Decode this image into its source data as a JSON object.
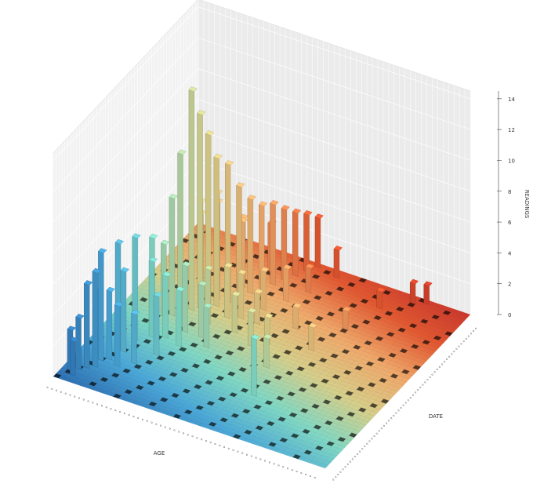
{
  "chart_data": {
    "type": "bar3d",
    "title": "",
    "xlabel": "AGE",
    "ylabel": "DATE",
    "zlabel": "READINGS",
    "zlim": [
      0,
      14.5
    ],
    "z_ticks": [
      0,
      2,
      4,
      6,
      8,
      10,
      12,
      14
    ],
    "grid": true,
    "colormap": [
      "#2c6fb3",
      "#4aa8d8",
      "#7fd8c4",
      "#d6cf8a",
      "#f0a96a",
      "#e2572f",
      "#c8342a"
    ],
    "x_tick_count": 60,
    "y_tick_count": 60,
    "bars": [
      {
        "x": 10,
        "y": 28,
        "z": 14.2
      },
      {
        "x": 11,
        "y": 29,
        "z": 12.6
      },
      {
        "x": 12,
        "y": 30,
        "z": 11.2
      },
      {
        "x": 9,
        "y": 26,
        "z": 10.4
      },
      {
        "x": 13,
        "y": 31,
        "z": 9.6
      },
      {
        "x": 14,
        "y": 33,
        "z": 8.9
      },
      {
        "x": 8,
        "y": 25,
        "z": 7.6
      },
      {
        "x": 15,
        "y": 35,
        "z": 7.2
      },
      {
        "x": 16,
        "y": 37,
        "z": 6.1
      },
      {
        "x": 12,
        "y": 33,
        "z": 6.8
      },
      {
        "x": 17,
        "y": 39,
        "z": 5.4
      },
      {
        "x": 18,
        "y": 41,
        "z": 5.2
      },
      {
        "x": 19,
        "y": 43,
        "z": 4.6
      },
      {
        "x": 20,
        "y": 45,
        "z": 4.1
      },
      {
        "x": 21,
        "y": 47,
        "z": 3.7
      },
      {
        "x": 22,
        "y": 49,
        "z": 3.2
      },
      {
        "x": 14,
        "y": 38,
        "z": 4.2
      },
      {
        "x": 11,
        "y": 35,
        "z": 5.7
      },
      {
        "x": 10,
        "y": 31,
        "z": 6.4
      },
      {
        "x": 9,
        "y": 33,
        "z": 5.1
      },
      {
        "x": 7,
        "y": 20,
        "z": 5.9
      },
      {
        "x": 6,
        "y": 16,
        "z": 6.6
      },
      {
        "x": 5,
        "y": 12,
        "z": 6.9
      },
      {
        "x": 4,
        "y": 8,
        "z": 7.0
      },
      {
        "x": 4,
        "y": 6,
        "z": 6.1
      },
      {
        "x": 3,
        "y": 5,
        "z": 5.4
      },
      {
        "x": 6,
        "y": 12,
        "z": 5.2
      },
      {
        "x": 8,
        "y": 18,
        "z": 4.9
      },
      {
        "x": 3,
        "y": 9,
        "z": 4.1
      },
      {
        "x": 5,
        "y": 9,
        "z": 4.4
      },
      {
        "x": 2,
        "y": 4,
        "z": 3.3
      },
      {
        "x": 1,
        "y": 3,
        "z": 2.6
      },
      {
        "x": 2,
        "y": 2,
        "z": 2.2
      },
      {
        "x": 7,
        "y": 24,
        "z": 4.7
      },
      {
        "x": 13,
        "y": 40,
        "z": 3.9
      },
      {
        "x": 16,
        "y": 44,
        "z": 3.1
      },
      {
        "x": 26,
        "y": 48,
        "z": 1.8
      },
      {
        "x": 18,
        "y": 30,
        "z": 2.9
      },
      {
        "x": 20,
        "y": 34,
        "z": 2.5
      },
      {
        "x": 22,
        "y": 38,
        "z": 2.1
      },
      {
        "x": 24,
        "y": 42,
        "z": 1.6
      },
      {
        "x": 15,
        "y": 22,
        "z": 3.4
      },
      {
        "x": 13,
        "y": 18,
        "z": 3.6
      },
      {
        "x": 11,
        "y": 14,
        "z": 3.8
      },
      {
        "x": 9,
        "y": 10,
        "z": 3.2
      },
      {
        "x": 7,
        "y": 8,
        "z": 3.9
      },
      {
        "x": 19,
        "y": 26,
        "z": 2.4
      },
      {
        "x": 21,
        "y": 30,
        "z": 2.0
      },
      {
        "x": 30,
        "y": 12,
        "z": 3.7
      },
      {
        "x": 28,
        "y": 20,
        "z": 1.9
      },
      {
        "x": 32,
        "y": 28,
        "z": 1.5
      },
      {
        "x": 34,
        "y": 36,
        "z": 1.2
      },
      {
        "x": 36,
        "y": 44,
        "z": 1.1
      },
      {
        "x": 40,
        "y": 48,
        "z": 1.3
      },
      {
        "x": 42,
        "y": 49,
        "z": 1.2
      },
      {
        "x": 17,
        "y": 20,
        "z": 2.6
      },
      {
        "x": 23,
        "y": 24,
        "z": 2.2
      },
      {
        "x": 25,
        "y": 26,
        "z": 1.7
      },
      {
        "x": 27,
        "y": 32,
        "z": 1.4
      },
      {
        "x": 12,
        "y": 22,
        "z": 4.3
      },
      {
        "x": 10,
        "y": 19,
        "z": 4.0
      },
      {
        "x": 14,
        "y": 26,
        "z": 3.5
      },
      {
        "x": 16,
        "y": 29,
        "z": 3.3
      }
    ]
  }
}
